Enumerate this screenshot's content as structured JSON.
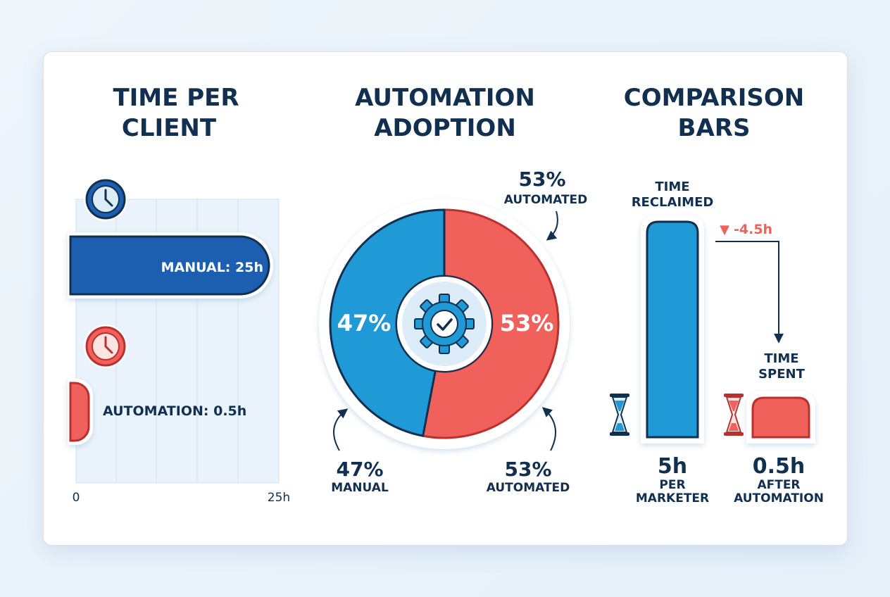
{
  "colors": {
    "navy": "#11304f",
    "manual_blue": "#1c5fb0",
    "donut_blue": "#1f9ad6",
    "automation_red": "#f0615c",
    "grid_bg": "#eaf3fb",
    "grid_line": "#cfe3f2"
  },
  "icons": [
    "clock-icon",
    "gear-check-icon",
    "hourglass-icon",
    "arrow-down-icon",
    "curved-arrow-icon"
  ],
  "chart_data": [
    {
      "type": "bar",
      "orientation": "horizontal",
      "title_lines": [
        "TIME PER",
        "CLIENT"
      ],
      "categories": [
        "MANUAL",
        "AUTOMATION"
      ],
      "values": [
        25,
        0.5
      ],
      "unit": "h",
      "data_labels": [
        "MANUAL: 25h",
        "AUTOMATION: 0.5h"
      ],
      "xlim": [
        0,
        25
      ],
      "x_tick_labels": [
        "0",
        "25h"
      ],
      "grid": true
    },
    {
      "type": "pie",
      "variant": "donut",
      "title_lines": [
        "AUTOMATION",
        "ADOPTION"
      ],
      "slices": [
        {
          "label": "MANUAL",
          "value": 47,
          "display": "47%"
        },
        {
          "label": "AUTOMATED",
          "value": 53,
          "display": "53%"
        }
      ],
      "callouts": [
        {
          "value": "53%",
          "label": "AUTOMATED"
        },
        {
          "value": "47%",
          "label": "MANUAL"
        },
        {
          "value": "53%",
          "label": "AUTOMATED"
        }
      ]
    },
    {
      "type": "bar",
      "title_lines": [
        "COMPARISON",
        "BARS"
      ],
      "categories": [
        "PER MARKETER",
        "AFTER AUTOMATION"
      ],
      "values": [
        5,
        0.5
      ],
      "unit": "h",
      "value_labels": [
        "5h",
        "0.5h"
      ],
      "category_label_lines": [
        [
          "PER",
          "MARKETER"
        ],
        [
          "AFTER",
          "AUTOMATION"
        ]
      ],
      "bar_annotations": [
        [
          "TIME",
          "RECLAIMED"
        ],
        [
          "TIME",
          "SPENT"
        ]
      ],
      "delta_label": "-4.5h",
      "delta_marker": "▼"
    }
  ]
}
